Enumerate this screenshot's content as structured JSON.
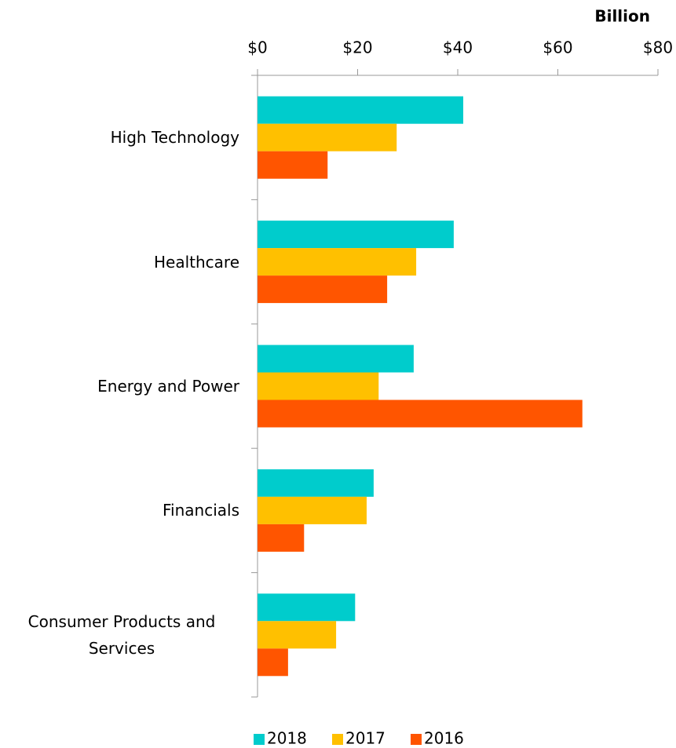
{
  "chart_data": {
    "type": "hbar",
    "axis_label": "Billion",
    "categories": [
      "High Technology",
      "Healthcare",
      "Energy and Power",
      "Financials",
      "Consumer Products and Services"
    ],
    "series": [
      {
        "name": "2018",
        "color": "#00cccc",
        "values": [
          41.1,
          39.2,
          31.2,
          23.2,
          19.5
        ]
      },
      {
        "name": "2017",
        "color": "#ffc000",
        "values": [
          27.8,
          31.7,
          24.2,
          21.8,
          15.7
        ]
      },
      {
        "name": "2016",
        "color": "#ff5500",
        "values": [
          14.0,
          25.9,
          64.9,
          9.3,
          6.1
        ]
      }
    ],
    "xlim": [
      0,
      80
    ],
    "xticks": [
      {
        "value": 0,
        "label": "$0"
      },
      {
        "value": 20,
        "label": "$20"
      },
      {
        "value": 40,
        "label": "$40"
      },
      {
        "value": 60,
        "label": "$60"
      },
      {
        "value": 80,
        "label": "$80"
      }
    ],
    "legend": "bottom",
    "grid": false
  }
}
